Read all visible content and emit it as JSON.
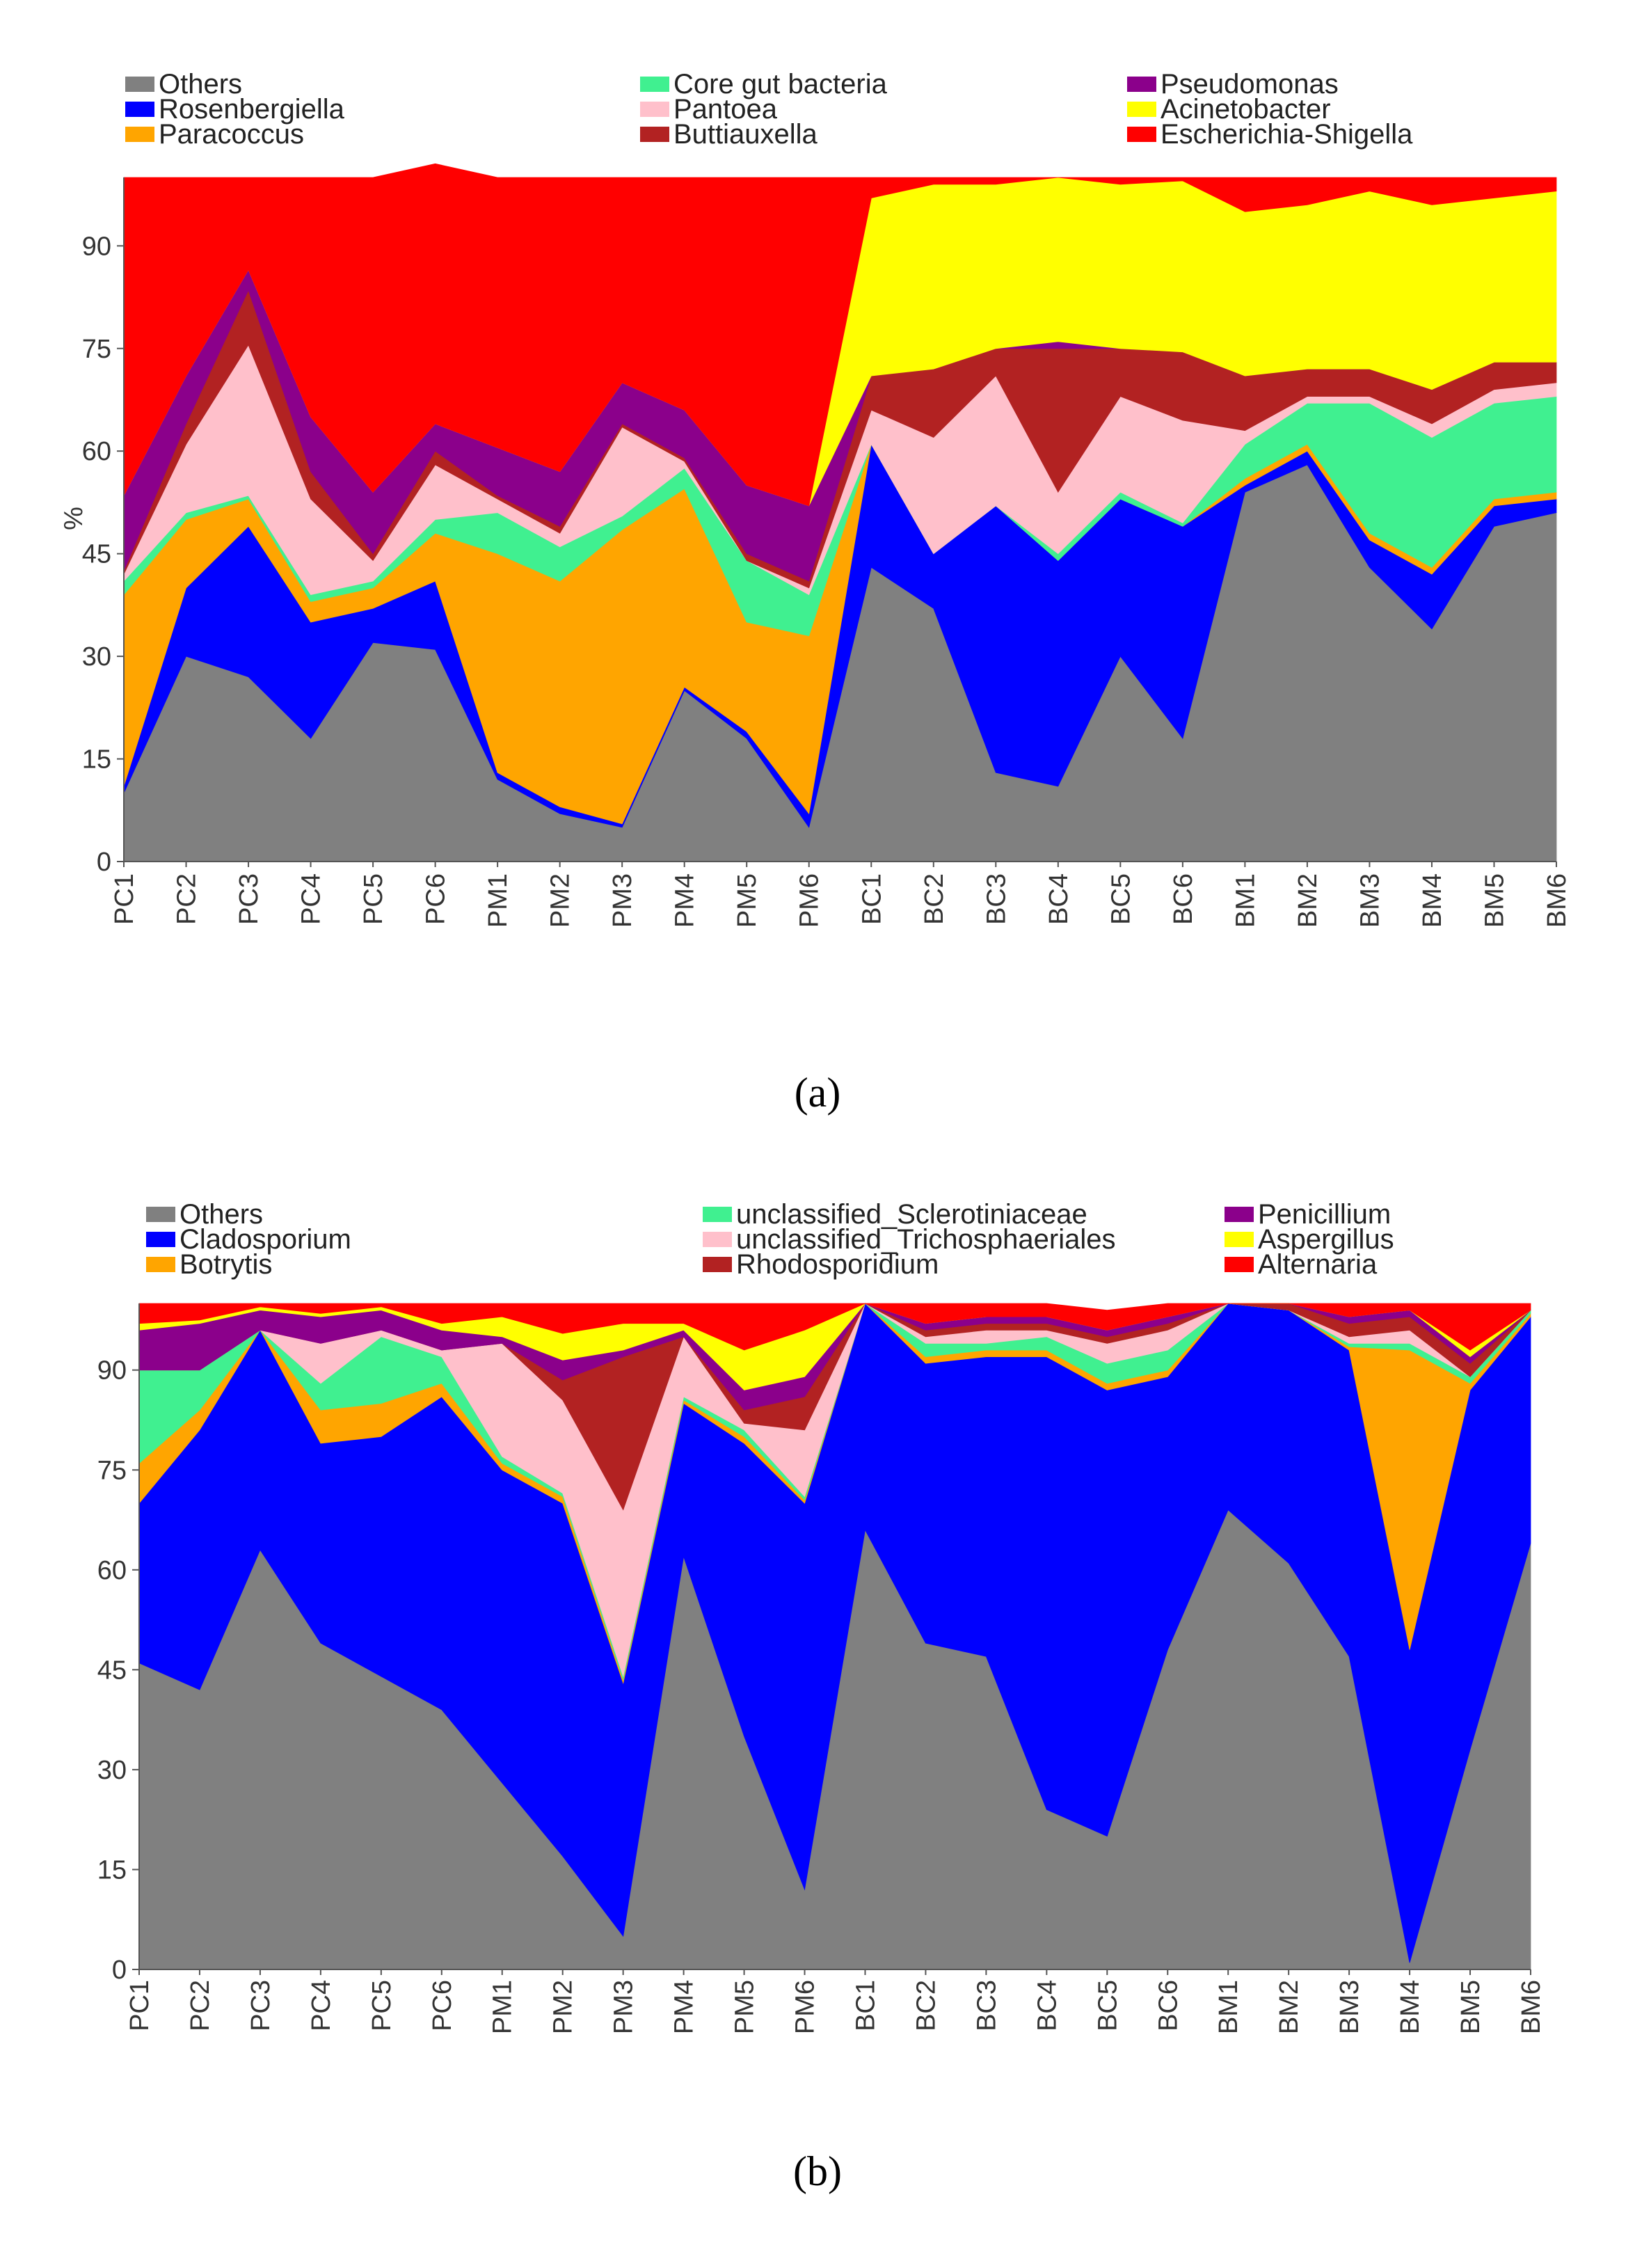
{
  "chart_data": [
    {
      "type": "area",
      "stacked": true,
      "panel_label": "(a)",
      "ylabel": "%",
      "y_ticks": [
        0,
        15,
        30,
        45,
        60,
        75,
        90
      ],
      "ylim": [
        0,
        100
      ],
      "categories": [
        "PC1",
        "PC2",
        "PC3",
        "PC4",
        "PC5",
        "PC6",
        "PM1",
        "PM2",
        "PM3",
        "PM4",
        "PM5",
        "PM6",
        "BC1",
        "BC2",
        "BC3",
        "BC4",
        "BC5",
        "BC6",
        "BM1",
        "BM2",
        "BM3",
        "BM4",
        "BM5",
        "BM6"
      ],
      "legend_position": "top",
      "series": [
        {
          "name": "Others",
          "color": "#808080",
          "values": [
            10,
            30,
            27,
            18,
            32,
            31,
            12,
            7,
            5,
            25,
            18,
            5,
            43,
            37,
            13,
            11,
            30,
            18,
            54,
            58,
            43,
            34,
            49,
            51
          ]
        },
        {
          "name": "Rosenbergiella",
          "color": "#0000ff",
          "values": [
            1,
            10,
            22,
            17,
            5,
            10,
            1,
            1,
            0.5,
            0.5,
            1,
            2,
            18,
            8,
            39,
            33,
            23,
            31,
            1,
            2,
            4,
            8,
            3,
            2
          ]
        },
        {
          "name": "Paracoccus",
          "color": "#ffa500",
          "values": [
            28,
            10,
            4,
            3,
            3,
            7,
            32,
            33,
            43,
            29,
            16,
            26,
            0,
            0,
            0,
            0,
            0,
            0,
            1,
            1,
            1,
            1,
            1,
            1
          ]
        },
        {
          "name": "Core gut bacteria",
          "color": "#40f090",
          "values": [
            2,
            1,
            0.5,
            1,
            1,
            2,
            6,
            5,
            2,
            3,
            9,
            6,
            0,
            0,
            0,
            1,
            1,
            0.5,
            5,
            6,
            19,
            19,
            14,
            14
          ]
        },
        {
          "name": "Pantoea",
          "color": "#ffc0cb",
          "values": [
            1,
            10,
            22,
            14,
            3,
            8,
            2,
            2,
            13,
            1,
            0,
            1,
            5,
            17,
            19,
            9,
            14,
            15,
            2,
            1,
            1,
            2,
            2,
            2
          ]
        },
        {
          "name": "Buttiauxella",
          "color": "#b22222",
          "values": [
            0.5,
            3,
            8,
            4,
            1,
            2,
            0.5,
            1,
            0.5,
            0.5,
            1,
            1,
            5,
            10,
            4,
            21,
            7,
            10,
            8,
            4,
            4,
            5,
            4,
            3
          ]
        },
        {
          "name": "Pseudomonas",
          "color": "#8b008b",
          "values": [
            11,
            7,
            3,
            8,
            9,
            4,
            7,
            8,
            6,
            7,
            10,
            11,
            0,
            0,
            0,
            1,
            0,
            0,
            0,
            0,
            0,
            0,
            0,
            0
          ]
        },
        {
          "name": "Acinetobacter",
          "color": "#ffff00",
          "values": [
            0,
            0,
            0,
            0,
            0,
            0,
            0,
            0,
            0,
            0,
            0,
            0,
            26,
            27,
            24,
            24,
            24,
            25,
            24,
            24,
            26,
            27,
            24,
            25
          ]
        },
        {
          "name": "Escherichia-Shigella",
          "color": "#ff0000",
          "values": [
            46.5,
            29,
            13.5,
            35,
            46,
            38,
            39.5,
            43,
            30,
            34,
            45,
            48,
            3,
            1,
            1,
            0,
            1,
            0.5,
            5,
            4,
            2,
            4,
            3,
            2
          ]
        }
      ]
    },
    {
      "type": "area",
      "stacked": true,
      "panel_label": "(b)",
      "ylabel": "",
      "y_ticks": [
        0,
        15,
        30,
        45,
        60,
        75,
        90
      ],
      "ylim": [
        0,
        100
      ],
      "categories": [
        "PC1",
        "PC2",
        "PC3",
        "PC4",
        "PC5",
        "PC6",
        "PM1",
        "PM2",
        "PM3",
        "PM4",
        "PM5",
        "PM6",
        "BC1",
        "BC2",
        "BC3",
        "BC4",
        "BC5",
        "BC6",
        "BM1",
        "BM2",
        "BM3",
        "BM4",
        "BM5",
        "BM6"
      ],
      "legend_position": "top",
      "series": [
        {
          "name": "Others",
          "color": "#808080",
          "values": [
            46,
            42,
            63,
            49,
            44,
            39,
            28,
            17,
            5,
            62,
            35,
            12,
            66,
            49,
            47,
            24,
            20,
            48,
            69,
            61,
            47,
            1,
            33,
            64
          ]
        },
        {
          "name": "Cladosporium",
          "color": "#0000ff",
          "values": [
            24,
            39,
            33,
            30,
            36,
            47,
            47,
            53,
            38,
            23,
            44,
            58,
            34,
            42,
            45,
            68,
            67,
            41,
            31,
            38,
            46,
            47,
            54,
            34
          ]
        },
        {
          "name": "Botrytis",
          "color": "#ffa500",
          "values": [
            6,
            3,
            0,
            5,
            5,
            2,
            1,
            1,
            0.5,
            0.5,
            1,
            0.5,
            0,
            1,
            1,
            1,
            1,
            1,
            0,
            0,
            0.5,
            45,
            1,
            0.5
          ]
        },
        {
          "name": "unclassified_Sclerotiniaceae",
          "color": "#40f090",
          "values": [
            14,
            6,
            0,
            4,
            10,
            4,
            1,
            0.5,
            0.5,
            0.5,
            1,
            0.5,
            0,
            2,
            1,
            2,
            3,
            3,
            0,
            0,
            0.5,
            1,
            1,
            0.5
          ]
        },
        {
          "name": "unclassified_Trichosphaeriales",
          "color": "#ffc0cb",
          "values": [
            0,
            0,
            0,
            6,
            1,
            1,
            17,
            14,
            25,
            9,
            1,
            10,
            0,
            1,
            2,
            1,
            3,
            3,
            0,
            0,
            1,
            2,
            0,
            0
          ]
        },
        {
          "name": "Rhodosporidium",
          "color": "#b22222",
          "values": [
            0,
            0,
            0,
            0,
            0,
            0,
            0,
            3,
            23,
            0,
            2,
            5,
            0,
            1,
            1,
            1,
            1,
            1,
            0,
            1,
            2,
            2,
            2,
            0
          ]
        },
        {
          "name": "Penicillium",
          "color": "#8b008b",
          "values": [
            6,
            7,
            3,
            4,
            3,
            3,
            1,
            3,
            1,
            1,
            3,
            3,
            0,
            1,
            1,
            1,
            1,
            1,
            0,
            0,
            1,
            1,
            1,
            0
          ]
        },
        {
          "name": "Aspergillus",
          "color": "#ffff00",
          "values": [
            1,
            0.5,
            0.5,
            0.5,
            0.5,
            1,
            3,
            4,
            4,
            1,
            6,
            7,
            0,
            0,
            0,
            0,
            0,
            0,
            0,
            0,
            0,
            0,
            1,
            0
          ]
        },
        {
          "name": "Alternaria",
          "color": "#ff0000",
          "values": [
            3,
            2.5,
            0.5,
            1.5,
            0.5,
            3,
            2,
            4.5,
            3,
            3,
            7,
            4,
            0,
            3,
            2,
            2,
            3,
            2,
            0,
            0,
            2,
            1,
            7,
            1
          ]
        }
      ]
    }
  ]
}
